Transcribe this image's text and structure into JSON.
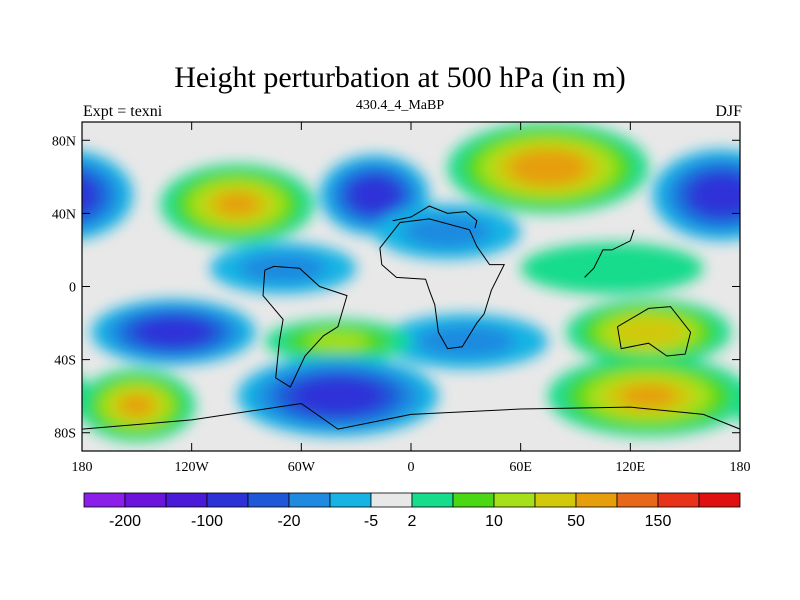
{
  "chart_data": {
    "type": "heatmap",
    "title": "Height perturbation at 500 hPa (in m)",
    "left_label": "Expt = texni",
    "center_label": "430.4_4_MaBP",
    "right_label": "DJF",
    "xlim": [
      -180,
      180
    ],
    "ylim": [
      -90,
      90
    ],
    "x_ticks": [
      {
        "value": -180,
        "label": "180"
      },
      {
        "value": -120,
        "label": "120W"
      },
      {
        "value": -60,
        "label": "60W"
      },
      {
        "value": 0,
        "label": "0"
      },
      {
        "value": 60,
        "label": "60E"
      },
      {
        "value": 120,
        "label": "120E"
      },
      {
        "value": 180,
        "label": "180"
      }
    ],
    "y_ticks": [
      {
        "value": 80,
        "label": "80N"
      },
      {
        "value": 40,
        "label": "40N"
      },
      {
        "value": 0,
        "label": "0"
      },
      {
        "value": -40,
        "label": "40S"
      },
      {
        "value": -80,
        "label": "80S"
      }
    ],
    "colorbar": {
      "colors": [
        "#8b1ee8",
        "#6a14dc",
        "#4a1ad8",
        "#2d32d8",
        "#1e58d8",
        "#1f8ae0",
        "#15b4e4",
        "#e8e8e8",
        "#16dc8c",
        "#4ad814",
        "#a6e01a",
        "#d2c80c",
        "#e69e0a",
        "#e8681a",
        "#e8321a",
        "#e01010"
      ],
      "labels": [
        "-200",
        "-100",
        "-20",
        "-5",
        "2",
        "10",
        "50",
        "150"
      ],
      "label_boundaries": [
        1,
        3,
        5,
        7,
        8,
        10,
        12,
        14
      ]
    },
    "field": {
      "background": "#e8e8e8",
      "features": [
        {
          "lon": -95,
          "lat": 45,
          "rlon": 42,
          "rlat": 22,
          "value": 60
        },
        {
          "lon": 75,
          "lat": 65,
          "rlon": 55,
          "rlat": 25,
          "value": 80
        },
        {
          "lon": -20,
          "lat": 50,
          "rlon": 30,
          "rlat": 22,
          "value": -30
        },
        {
          "lon": 170,
          "lat": 50,
          "rlon": 38,
          "rlat": 25,
          "value": -30
        },
        {
          "lon": 20,
          "lat": 30,
          "rlon": 40,
          "rlat": 15,
          "value": -6
        },
        {
          "lon": -70,
          "lat": 10,
          "rlon": 40,
          "rlat": 14,
          "value": -6
        },
        {
          "lon": -130,
          "lat": -25,
          "rlon": 45,
          "rlat": 18,
          "value": -30
        },
        {
          "lon": 30,
          "lat": -30,
          "rlon": 45,
          "rlat": 15,
          "value": -6
        },
        {
          "lon": -40,
          "lat": -30,
          "rlon": 40,
          "rlat": 12,
          "value": 12
        },
        {
          "lon": 130,
          "lat": -25,
          "rlon": 45,
          "rlat": 18,
          "value": 40
        },
        {
          "lon": -150,
          "lat": -65,
          "rlon": 32,
          "rlat": 20,
          "value": 60
        },
        {
          "lon": 130,
          "lat": -60,
          "rlon": 55,
          "rlat": 22,
          "value": 60
        },
        {
          "lon": -40,
          "lat": -60,
          "rlon": 55,
          "rlat": 22,
          "value": -50
        },
        {
          "lon": 110,
          "lat": 10,
          "rlon": 50,
          "rlat": 14,
          "value": 5
        }
      ]
    },
    "coastline_note": "continental outlines (map overlay)"
  }
}
